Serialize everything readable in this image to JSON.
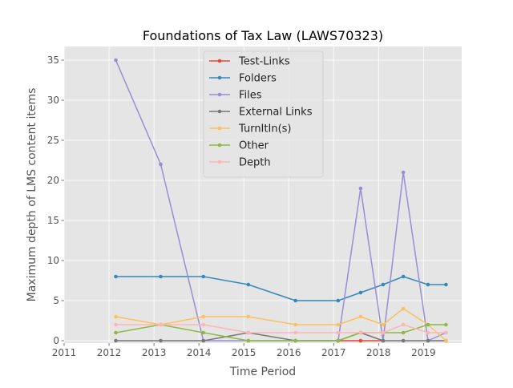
{
  "chart_data": {
    "type": "line",
    "title": "Foundations of Tax Law (LAWS70323)",
    "xlabel": "Time Period",
    "ylabel": "Maximum depth of LMS content items",
    "xlim": [
      2011,
      2019.85
    ],
    "ylim": [
      -0.3,
      36.7
    ],
    "x_ticks": [
      2011,
      2012,
      2013,
      2014,
      2015,
      2016,
      2017,
      2018,
      2019
    ],
    "y_ticks": [
      0,
      5,
      10,
      15,
      20,
      25,
      30,
      35
    ],
    "grid": true,
    "legend_position": "top-center",
    "series": [
      {
        "name": "Test-Links",
        "color": "#E24A33",
        "points": [
          [
            2017.1,
            0
          ],
          [
            2017.6,
            0
          ],
          [
            2018.1,
            0
          ]
        ]
      },
      {
        "name": "Folders",
        "color": "#348ABD",
        "points": [
          [
            2012.15,
            8
          ],
          [
            2013.15,
            8
          ],
          [
            2014.1,
            8
          ],
          [
            2015.1,
            7
          ],
          [
            2016.15,
            5
          ],
          [
            2017.1,
            5
          ],
          [
            2017.6,
            6
          ],
          [
            2018.1,
            7
          ],
          [
            2018.55,
            8
          ],
          [
            2019.1,
            7
          ],
          [
            2019.5,
            7
          ]
        ]
      },
      {
        "name": "Files",
        "color": "#988ED5",
        "points": [
          [
            2012.15,
            35
          ],
          [
            2013.15,
            22
          ],
          [
            2014.1,
            0
          ],
          [
            2015.1,
            0
          ],
          [
            2016.15,
            0
          ],
          [
            2017.1,
            0
          ],
          [
            2017.6,
            19
          ],
          [
            2018.1,
            0
          ],
          [
            2018.55,
            21
          ],
          [
            2019.1,
            0
          ],
          [
            2019.5,
            1
          ]
        ]
      },
      {
        "name": "External Links",
        "color": "#777777",
        "points": [
          [
            2012.15,
            0
          ],
          [
            2013.15,
            0
          ],
          [
            2014.1,
            0
          ],
          [
            2015.1,
            1
          ],
          [
            2016.15,
            0
          ],
          [
            2017.1,
            0
          ],
          [
            2017.6,
            1
          ],
          [
            2018.1,
            0
          ],
          [
            2018.55,
            0
          ],
          [
            2019.1,
            0
          ],
          [
            2019.5,
            0
          ]
        ]
      },
      {
        "name": "TurnItIn(s)",
        "color": "#FBC15E",
        "points": [
          [
            2012.15,
            3
          ],
          [
            2013.15,
            2
          ],
          [
            2014.1,
            3
          ],
          [
            2015.1,
            3
          ],
          [
            2016.15,
            2
          ],
          [
            2017.1,
            2
          ],
          [
            2017.6,
            3
          ],
          [
            2018.1,
            2
          ],
          [
            2018.55,
            4
          ],
          [
            2019.1,
            2
          ],
          [
            2019.5,
            0
          ]
        ]
      },
      {
        "name": "Other",
        "color": "#8EBA42",
        "points": [
          [
            2012.15,
            1
          ],
          [
            2013.15,
            2
          ],
          [
            2014.1,
            1
          ],
          [
            2015.1,
            0
          ],
          [
            2016.15,
            0
          ],
          [
            2017.1,
            0
          ],
          [
            2017.6,
            1
          ],
          [
            2018.1,
            1
          ],
          [
            2018.55,
            1
          ],
          [
            2019.1,
            2
          ],
          [
            2019.5,
            2
          ]
        ]
      },
      {
        "name": "Depth",
        "color": "#FFB5B8",
        "points": [
          [
            2012.15,
            2
          ],
          [
            2013.15,
            2
          ],
          [
            2014.1,
            2
          ],
          [
            2015.1,
            1
          ],
          [
            2016.15,
            1
          ],
          [
            2017.1,
            1
          ],
          [
            2017.6,
            1
          ],
          [
            2018.1,
            1
          ],
          [
            2018.55,
            2
          ],
          [
            2019.1,
            1
          ],
          [
            2019.5,
            1
          ]
        ]
      }
    ]
  }
}
